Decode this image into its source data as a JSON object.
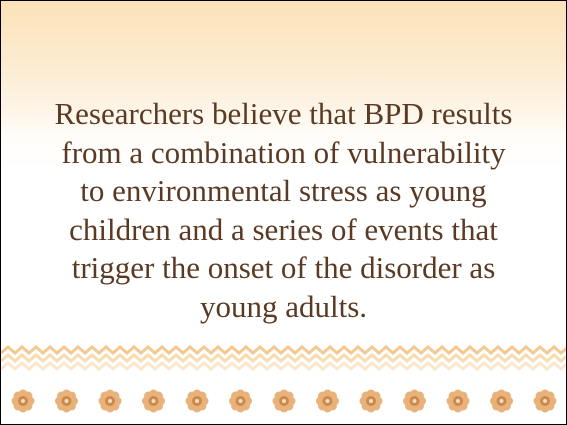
{
  "body": {
    "lines": [
      "Researchers believe that BPD results",
      "from a combination of vulnerability",
      "to environmental stress as young",
      "children and a series of events that",
      "trigger the onset of the disorder as",
      "young adults."
    ]
  }
}
